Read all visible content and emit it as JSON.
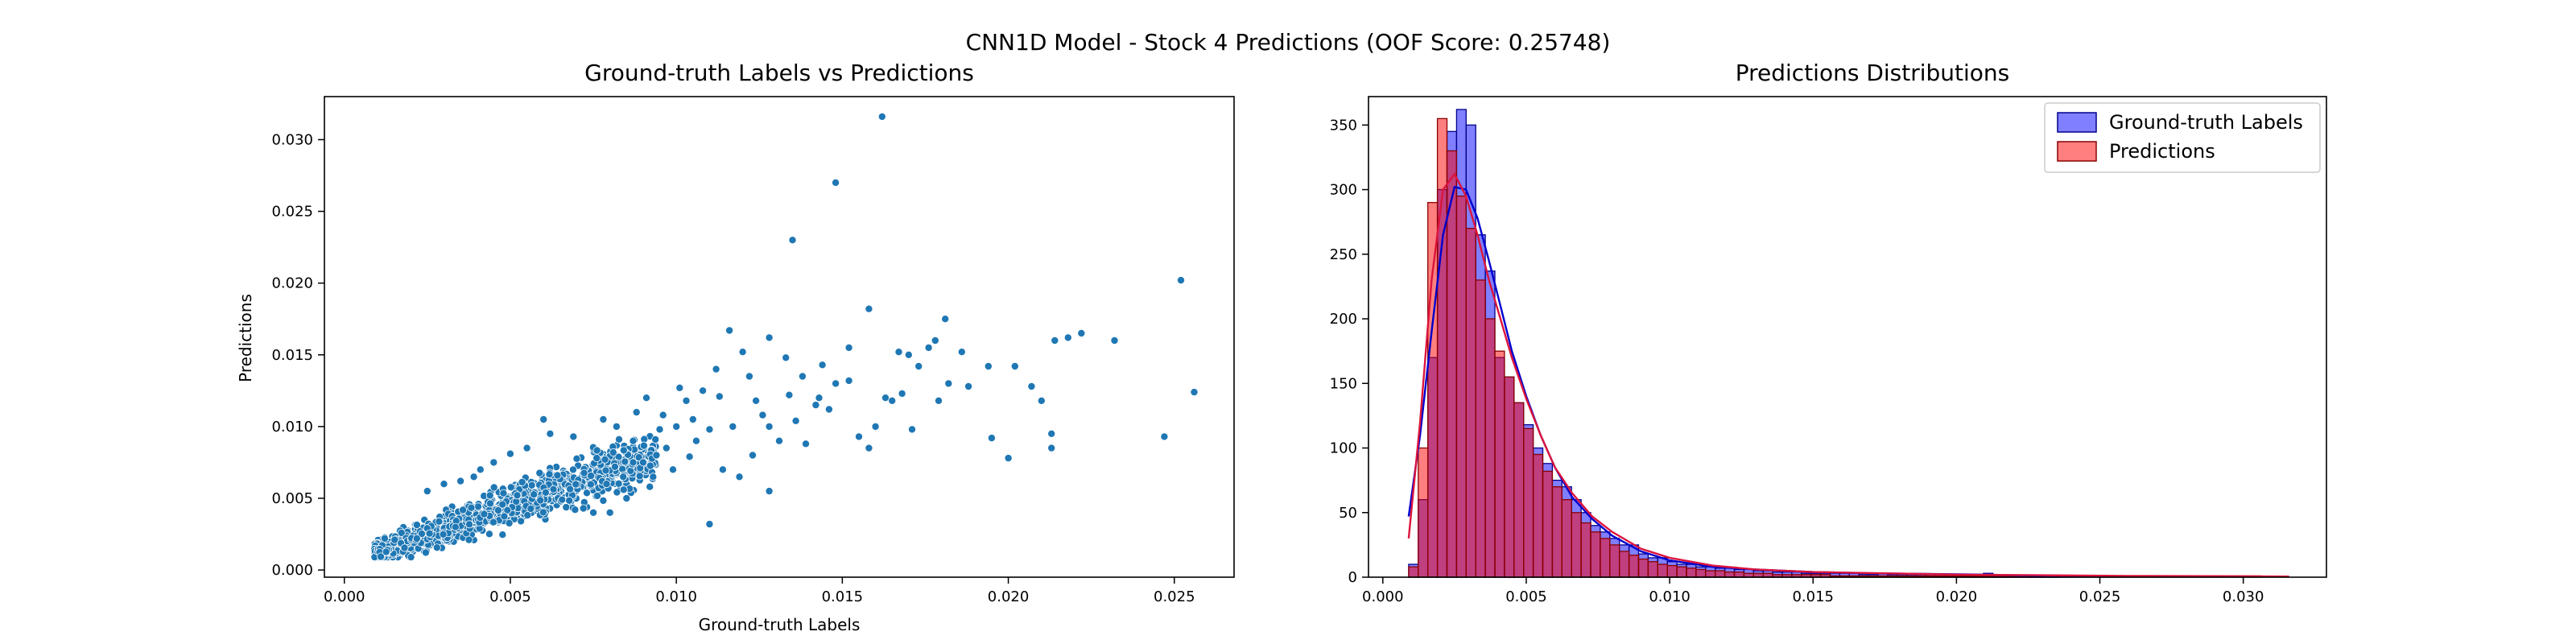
{
  "figure": {
    "suptitle": "CNN1D Model - Stock 4 Predictions (OOF Score: 0.25748)"
  },
  "chart_data": [
    {
      "type": "scatter",
      "title": "Ground-truth Labels vs Predictions",
      "xlabel": "Ground-truth Labels",
      "ylabel": "Predictions",
      "xlim": [
        -0.0006,
        0.0268
      ],
      "ylim": [
        -0.0005,
        0.033
      ],
      "xticks": [
        "0.000",
        "0.005",
        "0.010",
        "0.015",
        "0.020",
        "0.025"
      ],
      "yticks": [
        "0.000",
        "0.005",
        "0.010",
        "0.015",
        "0.020",
        "0.025",
        "0.030"
      ],
      "grid": false,
      "marker_color": "#1f77b4",
      "points": [
        [
          0.0162,
          0.0316
        ],
        [
          0.0148,
          0.027
        ],
        [
          0.0135,
          0.023
        ],
        [
          0.0252,
          0.0202
        ],
        [
          0.0158,
          0.0182
        ],
        [
          0.0181,
          0.0175
        ],
        [
          0.0256,
          0.0124
        ],
        [
          0.0247,
          0.0093
        ],
        [
          0.0232,
          0.016
        ],
        [
          0.0222,
          0.0165
        ],
        [
          0.0218,
          0.0162
        ],
        [
          0.0214,
          0.016
        ],
        [
          0.0213,
          0.0095
        ],
        [
          0.0213,
          0.0085
        ],
        [
          0.02,
          0.0078
        ],
        [
          0.0195,
          0.0092
        ],
        [
          0.021,
          0.0118
        ],
        [
          0.0207,
          0.0128
        ],
        [
          0.0202,
          0.0142
        ],
        [
          0.0194,
          0.0142
        ],
        [
          0.0186,
          0.0152
        ],
        [
          0.0178,
          0.016
        ],
        [
          0.0176,
          0.0155
        ],
        [
          0.0173,
          0.0142
        ],
        [
          0.017,
          0.015
        ],
        [
          0.0167,
          0.0152
        ],
        [
          0.0163,
          0.012
        ],
        [
          0.016,
          0.01
        ],
        [
          0.0158,
          0.0085
        ],
        [
          0.0171,
          0.0098
        ],
        [
          0.0182,
          0.013
        ],
        [
          0.0188,
          0.0128
        ],
        [
          0.0179,
          0.0118
        ],
        [
          0.0148,
          0.013
        ],
        [
          0.0152,
          0.0155
        ],
        [
          0.0144,
          0.0143
        ],
        [
          0.0138,
          0.0135
        ],
        [
          0.0133,
          0.0148
        ],
        [
          0.0128,
          0.0162
        ],
        [
          0.0128,
          0.01
        ],
        [
          0.0124,
          0.0118
        ],
        [
          0.012,
          0.0152
        ],
        [
          0.0116,
          0.0167
        ],
        [
          0.0112,
          0.014
        ],
        [
          0.0108,
          0.0125
        ],
        [
          0.011,
          0.0098
        ],
        [
          0.0103,
          0.0118
        ],
        [
          0.01,
          0.01
        ],
        [
          0.0097,
          0.0085
        ],
        [
          0.0093,
          0.0065
        ],
        [
          0.009,
          0.0075
        ],
        [
          0.0087,
          0.009
        ],
        [
          0.0084,
          0.0065
        ],
        [
          0.008,
          0.004
        ],
        [
          0.0075,
          0.004
        ],
        [
          0.0072,
          0.0043
        ],
        [
          0.011,
          0.0032
        ],
        [
          0.0128,
          0.0055
        ],
        [
          0.0119,
          0.0065
        ],
        [
          0.0139,
          0.0088
        ],
        [
          0.0142,
          0.0115
        ],
        [
          0.0155,
          0.0093
        ],
        [
          0.0165,
          0.0118
        ],
        [
          0.0143,
          0.012
        ],
        [
          0.0131,
          0.009
        ],
        [
          0.0123,
          0.008
        ],
        [
          0.0114,
          0.007
        ],
        [
          0.0104,
          0.0079
        ],
        [
          0.0096,
          0.0108
        ],
        [
          0.0101,
          0.0127
        ],
        [
          0.0091,
          0.012
        ],
        [
          0.0095,
          0.0098
        ],
        [
          0.0088,
          0.011
        ],
        [
          0.0082,
          0.01
        ],
        [
          0.0078,
          0.0105
        ],
        [
          0.006,
          0.0105
        ],
        [
          0.0062,
          0.0095
        ],
        [
          0.0069,
          0.0093
        ],
        [
          0.0055,
          0.0085
        ],
        [
          0.005,
          0.0081
        ],
        [
          0.0045,
          0.0075
        ],
        [
          0.0041,
          0.007
        ],
        [
          0.0039,
          0.0065
        ],
        [
          0.0025,
          0.0055
        ],
        [
          0.003,
          0.006
        ],
        [
          0.0035,
          0.0062
        ],
        [
          0.0136,
          0.0104
        ],
        [
          0.0146,
          0.0112
        ],
        [
          0.0152,
          0.0132
        ],
        [
          0.0168,
          0.0123
        ],
        [
          0.0106,
          0.009
        ],
        [
          0.0099,
          0.007
        ],
        [
          0.0092,
          0.0058
        ],
        [
          0.0085,
          0.005
        ],
        [
          0.0079,
          0.006
        ],
        [
          0.0117,
          0.01
        ],
        [
          0.0126,
          0.0108
        ],
        [
          0.0134,
          0.0122
        ],
        [
          0.0122,
          0.0135
        ],
        [
          0.0113,
          0.0121
        ],
        [
          0.0105,
          0.0105
        ],
        [
          0.0094,
          0.008
        ],
        [
          0.0087,
          0.0075
        ],
        [
          0.0081,
          0.0082
        ],
        [
          0.0076,
          0.0078
        ]
      ]
    },
    {
      "type": "histogram",
      "title": "Predictions Distributions",
      "xlim": [
        -0.0005,
        0.0329
      ],
      "ylim": [
        0,
        372
      ],
      "xticks": [
        "0.000",
        "0.005",
        "0.010",
        "0.015",
        "0.020",
        "0.025",
        "0.030"
      ],
      "yticks": [
        "0",
        "50",
        "100",
        "150",
        "200",
        "250",
        "300",
        "350"
      ],
      "grid": false,
      "legend_position": "top-right",
      "bin_start": 0.0009,
      "bin_width": 0.000334,
      "series": [
        {
          "name": "Ground-truth Labels",
          "fill": "#0000ff",
          "fill_opacity": 0.5,
          "edge": "#00008b",
          "kde_color": "#0000cd",
          "counts": [
            10,
            60,
            170,
            300,
            345,
            362,
            350,
            265,
            237,
            170,
            155,
            135,
            118,
            100,
            88,
            75,
            70,
            60,
            50,
            40,
            35,
            30,
            25,
            25,
            18,
            15,
            15,
            12,
            10,
            10,
            8,
            8,
            7,
            7,
            6,
            6,
            5,
            5,
            4,
            4,
            4,
            3,
            3,
            3,
            3,
            3,
            3,
            2,
            2,
            3,
            2,
            2,
            2,
            2,
            2,
            2,
            2,
            2,
            1,
            1,
            3,
            1,
            1,
            1,
            1,
            1,
            1,
            1,
            0,
            0,
            0,
            0,
            0,
            0,
            0,
            0,
            0,
            0,
            0,
            0,
            0,
            0,
            0,
            0,
            0,
            0,
            0,
            0,
            0
          ],
          "kde": [
            [
              0.0009,
              47
            ],
            [
              0.0013,
              110
            ],
            [
              0.0017,
              190
            ],
            [
              0.0021,
              265
            ],
            [
              0.0025,
              302
            ],
            [
              0.0029,
              300
            ],
            [
              0.0033,
              278
            ],
            [
              0.0037,
              245
            ],
            [
              0.0041,
              210
            ],
            [
              0.0045,
              175
            ],
            [
              0.005,
              140
            ],
            [
              0.0055,
              110
            ],
            [
              0.006,
              85
            ],
            [
              0.0066,
              62
            ],
            [
              0.0073,
              45
            ],
            [
              0.008,
              32
            ],
            [
              0.009,
              20
            ],
            [
              0.01,
              13
            ],
            [
              0.0115,
              8
            ],
            [
              0.013,
              6
            ],
            [
              0.015,
              4
            ],
            [
              0.017,
              3
            ],
            [
              0.019,
              2.5
            ],
            [
              0.021,
              2
            ],
            [
              0.023,
              1
            ],
            [
              0.0256,
              0.5
            ]
          ]
        },
        {
          "name": "Predictions",
          "fill": "#ff0000",
          "fill_opacity": 0.5,
          "edge": "#8b0000",
          "kde_color": "#dc143c",
          "counts": [
            8,
            100,
            290,
            355,
            330,
            295,
            270,
            230,
            200,
            175,
            155,
            135,
            115,
            95,
            82,
            70,
            60,
            50,
            42,
            35,
            30,
            25,
            20,
            17,
            14,
            12,
            10,
            9,
            8,
            7,
            6,
            5,
            5,
            4,
            4,
            3,
            3,
            3,
            2,
            2,
            2,
            2,
            2,
            2,
            1,
            1,
            1,
            1,
            1,
            1,
            1,
            1,
            1,
            1,
            1,
            1,
            1,
            1,
            1,
            1,
            1,
            1,
            1,
            1,
            1,
            1,
            1,
            1,
            1,
            1,
            1,
            1,
            1,
            1,
            1,
            1,
            1,
            1,
            1,
            1,
            1,
            1,
            1,
            1,
            1,
            1,
            1,
            1,
            1
          ],
          "kde": [
            [
              0.0009,
              30
            ],
            [
              0.0013,
              120
            ],
            [
              0.0017,
              230
            ],
            [
              0.0021,
              300
            ],
            [
              0.0025,
              312
            ],
            [
              0.0029,
              295
            ],
            [
              0.0033,
              265
            ],
            [
              0.0037,
              230
            ],
            [
              0.0041,
              200
            ],
            [
              0.0045,
              170
            ],
            [
              0.005,
              138
            ],
            [
              0.0055,
              110
            ],
            [
              0.006,
              85
            ],
            [
              0.0066,
              65
            ],
            [
              0.0073,
              47
            ],
            [
              0.008,
              35
            ],
            [
              0.009,
              22
            ],
            [
              0.01,
              15
            ],
            [
              0.0115,
              9
            ],
            [
              0.013,
              6
            ],
            [
              0.015,
              4
            ],
            [
              0.0175,
              3
            ],
            [
              0.02,
              2
            ],
            [
              0.023,
              1.5
            ],
            [
              0.026,
              1
            ],
            [
              0.029,
              0.8
            ],
            [
              0.0316,
              0.5
            ]
          ]
        }
      ]
    }
  ]
}
